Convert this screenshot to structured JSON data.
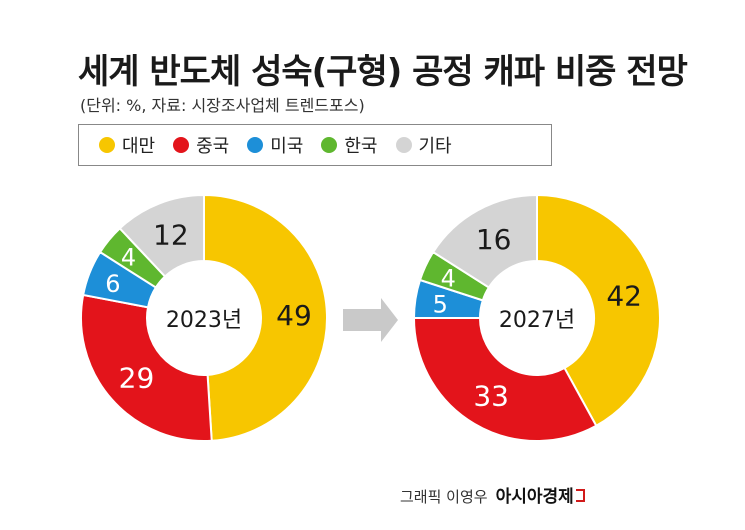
{
  "title": "세계 반도체 성숙(구형) 공정 캐파 비중 전망",
  "subtitle": "(단위: %, 자료: 시장조사업체 트렌드포스)",
  "legend": [
    {
      "label": "대만",
      "color": "#f7c600"
    },
    {
      "label": "중국",
      "color": "#e3141b"
    },
    {
      "label": "미국",
      "color": "#1d8fd8"
    },
    {
      "label": "한국",
      "color": "#5fb72f"
    },
    {
      "label": "기타",
      "color": "#d4d4d4"
    }
  ],
  "chart_data": [
    {
      "type": "pie",
      "title": "2023년",
      "categories": [
        "대만",
        "중국",
        "미국",
        "한국",
        "기타"
      ],
      "values": [
        49,
        29,
        6,
        4,
        12
      ],
      "colors": [
        "#f7c600",
        "#e3141b",
        "#1d8fd8",
        "#5fb72f",
        "#d4d4d4"
      ]
    },
    {
      "type": "pie",
      "title": "2027년",
      "categories": [
        "대만",
        "중국",
        "미국",
        "한국",
        "기타"
      ],
      "values": [
        42,
        33,
        5,
        4,
        16
      ],
      "colors": [
        "#f7c600",
        "#e3141b",
        "#1d8fd8",
        "#5fb72f",
        "#d4d4d4"
      ]
    }
  ],
  "arrow_icon": "chevron-right-icon",
  "credit": {
    "text": "그래픽 이영우",
    "brand": "아시아경제"
  }
}
